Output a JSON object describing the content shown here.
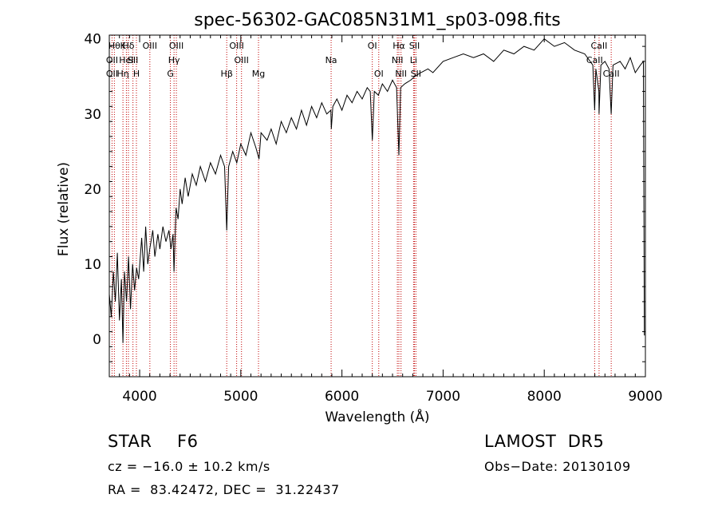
{
  "chart_data": {
    "type": "line",
    "title": "spec-56302-GAC085N31M1_sp03-098.fits",
    "xlabel": "Wavelength (Å)",
    "ylabel": "Flux (relative)",
    "xlim": [
      3700,
      9000
    ],
    "ylim": [
      -5,
      40.5
    ],
    "xticks": [
      4000,
      5000,
      6000,
      7000,
      8000,
      9000
    ],
    "yticks": [
      0,
      10,
      20,
      30,
      40
    ],
    "grid": false,
    "series": [
      {
        "points": [
          [
            3700,
            6.0
          ],
          [
            3720,
            3.0
          ],
          [
            3740,
            9.0
          ],
          [
            3760,
            5.0
          ],
          [
            3780,
            11.5
          ],
          [
            3800,
            2.5
          ],
          [
            3820,
            8.0
          ],
          [
            3835,
            -0.5
          ],
          [
            3850,
            9.0
          ],
          [
            3870,
            5.0
          ],
          [
            3890,
            11.0
          ],
          [
            3910,
            4.0
          ],
          [
            3930,
            10.0
          ],
          [
            3950,
            6.5
          ],
          [
            3970,
            9.5
          ],
          [
            3990,
            8.0
          ],
          [
            4020,
            13.5
          ],
          [
            4040,
            9.0
          ],
          [
            4060,
            15.0
          ],
          [
            4080,
            10.0
          ],
          [
            4100,
            12.0
          ],
          [
            4130,
            14.5
          ],
          [
            4150,
            11.0
          ],
          [
            4180,
            14.0
          ],
          [
            4200,
            12.0
          ],
          [
            4230,
            15.0
          ],
          [
            4260,
            13.0
          ],
          [
            4290,
            14.5
          ],
          [
            4310,
            12.0
          ],
          [
            4330,
            14.0
          ],
          [
            4340,
            9.0
          ],
          [
            4360,
            17.5
          ],
          [
            4380,
            16.0
          ],
          [
            4400,
            20.0
          ],
          [
            4420,
            18.0
          ],
          [
            4450,
            21.5
          ],
          [
            4480,
            19.0
          ],
          [
            4520,
            22.0
          ],
          [
            4560,
            20.5
          ],
          [
            4600,
            23.0
          ],
          [
            4650,
            21.0
          ],
          [
            4700,
            23.5
          ],
          [
            4750,
            22.0
          ],
          [
            4800,
            24.5
          ],
          [
            4840,
            23.0
          ],
          [
            4861,
            14.5
          ],
          [
            4880,
            23.0
          ],
          [
            4920,
            25.0
          ],
          [
            4960,
            23.5
          ],
          [
            5000,
            26.0
          ],
          [
            5050,
            24.5
          ],
          [
            5100,
            27.5
          ],
          [
            5150,
            25.5
          ],
          [
            5180,
            24.0
          ],
          [
            5200,
            27.5
          ],
          [
            5260,
            26.5
          ],
          [
            5300,
            28.0
          ],
          [
            5350,
            26.0
          ],
          [
            5400,
            29.0
          ],
          [
            5450,
            27.5
          ],
          [
            5500,
            29.5
          ],
          [
            5550,
            28.0
          ],
          [
            5600,
            30.5
          ],
          [
            5650,
            28.5
          ],
          [
            5700,
            31.0
          ],
          [
            5750,
            29.5
          ],
          [
            5800,
            31.5
          ],
          [
            5850,
            30.0
          ],
          [
            5890,
            30.5
          ],
          [
            5895,
            28.0
          ],
          [
            5910,
            31.0
          ],
          [
            5950,
            32.0
          ],
          [
            6000,
            30.5
          ],
          [
            6050,
            32.5
          ],
          [
            6100,
            31.5
          ],
          [
            6150,
            33.0
          ],
          [
            6200,
            32.0
          ],
          [
            6250,
            33.5
          ],
          [
            6280,
            33.0
          ],
          [
            6300,
            26.5
          ],
          [
            6320,
            33.0
          ],
          [
            6360,
            32.5
          ],
          [
            6400,
            34.0
          ],
          [
            6450,
            33.0
          ],
          [
            6500,
            34.5
          ],
          [
            6540,
            33.5
          ],
          [
            6563,
            24.5
          ],
          [
            6580,
            33.5
          ],
          [
            6620,
            34.0
          ],
          [
            6680,
            34.5
          ],
          [
            6720,
            35.0
          ],
          [
            6780,
            35.5
          ],
          [
            6850,
            36.0
          ],
          [
            6900,
            35.5
          ],
          [
            7000,
            37.0
          ],
          [
            7100,
            37.5
          ],
          [
            7200,
            38.0
          ],
          [
            7300,
            37.5
          ],
          [
            7400,
            38.0
          ],
          [
            7500,
            37.0
          ],
          [
            7600,
            38.5
          ],
          [
            7700,
            38.0
          ],
          [
            7800,
            39.0
          ],
          [
            7900,
            38.5
          ],
          [
            8000,
            40.0
          ],
          [
            8100,
            39.0
          ],
          [
            8200,
            39.5
          ],
          [
            8300,
            38.5
          ],
          [
            8400,
            38.0
          ],
          [
            8480,
            36.5
          ],
          [
            8498,
            30.5
          ],
          [
            8510,
            36.0
          ],
          [
            8540,
            33.0
          ],
          [
            8542,
            30.0
          ],
          [
            8560,
            36.5
          ],
          [
            8600,
            37.0
          ],
          [
            8640,
            36.0
          ],
          [
            8662,
            30.0
          ],
          [
            8680,
            36.5
          ],
          [
            8750,
            37.0
          ],
          [
            8800,
            36.0
          ],
          [
            8850,
            37.5
          ],
          [
            8900,
            35.5
          ],
          [
            8950,
            36.5
          ],
          [
            8980,
            37.0
          ],
          [
            8990,
            0.5
          ]
        ]
      }
    ],
    "lines": [
      {
        "wave": 3750,
        "row": 1,
        "label": "Hθ"
      },
      {
        "wave": 3727,
        "row": 2,
        "label": "OII"
      },
      {
        "wave": 3727,
        "row": 3,
        "label": "OII"
      },
      {
        "wave": 3835,
        "row": 1,
        "label": "K"
      },
      {
        "wave": 3869,
        "row": 2,
        "label": "HeI"
      },
      {
        "wave": 3835,
        "row": 3,
        "label": "Hη"
      },
      {
        "wave": 3889,
        "row": 1,
        "label": "Hδ"
      },
      {
        "wave": 3934,
        "row": 2,
        "label": "SII"
      },
      {
        "wave": 3968,
        "row": 3,
        "label": "H"
      },
      {
        "wave": 4101,
        "row": 1,
        "label": "OIII"
      },
      {
        "wave": 4340,
        "row": 2,
        "label": "Hγ"
      },
      {
        "wave": 4304,
        "row": 3,
        "label": "G"
      },
      {
        "wave": 4363,
        "row": 1,
        "label": "OIII"
      },
      {
        "wave": 4959,
        "row": 1,
        "label": "OIII"
      },
      {
        "wave": 5007,
        "row": 2,
        "label": "OIII"
      },
      {
        "wave": 4861,
        "row": 3,
        "label": "Hβ"
      },
      {
        "wave": 5175,
        "row": 3,
        "label": "Mg"
      },
      {
        "wave": 5893,
        "row": 2,
        "label": "Na"
      },
      {
        "wave": 6300,
        "row": 1,
        "label": "OI"
      },
      {
        "wave": 6364,
        "row": 3,
        "label": "OI"
      },
      {
        "wave": 6563,
        "row": 1,
        "label": "Hα"
      },
      {
        "wave": 6548,
        "row": 2,
        "label": "NII"
      },
      {
        "wave": 6584,
        "row": 3,
        "label": "NII"
      },
      {
        "wave": 6717,
        "row": 1,
        "label": "SII"
      },
      {
        "wave": 6708,
        "row": 2,
        "label": "Li"
      },
      {
        "wave": 6731,
        "row": 3,
        "label": "SII"
      },
      {
        "wave": 8542,
        "row": 1,
        "label": "CaII"
      },
      {
        "wave": 8498,
        "row": 2,
        "label": "CaII"
      },
      {
        "wave": 8662,
        "row": 3,
        "label": "CaII"
      }
    ]
  },
  "info": {
    "class": "STAR",
    "subclass": "F6",
    "survey": "LAMOST  DR5",
    "cz": "cz = −16.0 ± 10.2 km/s",
    "obsdate": "Obs−Date: 20130109",
    "radec": "RA =  83.42472, DEC =  31.22437"
  },
  "colors": {
    "spectrum": "#000000",
    "line_markers": "#c00000",
    "background": "#ffffff"
  }
}
